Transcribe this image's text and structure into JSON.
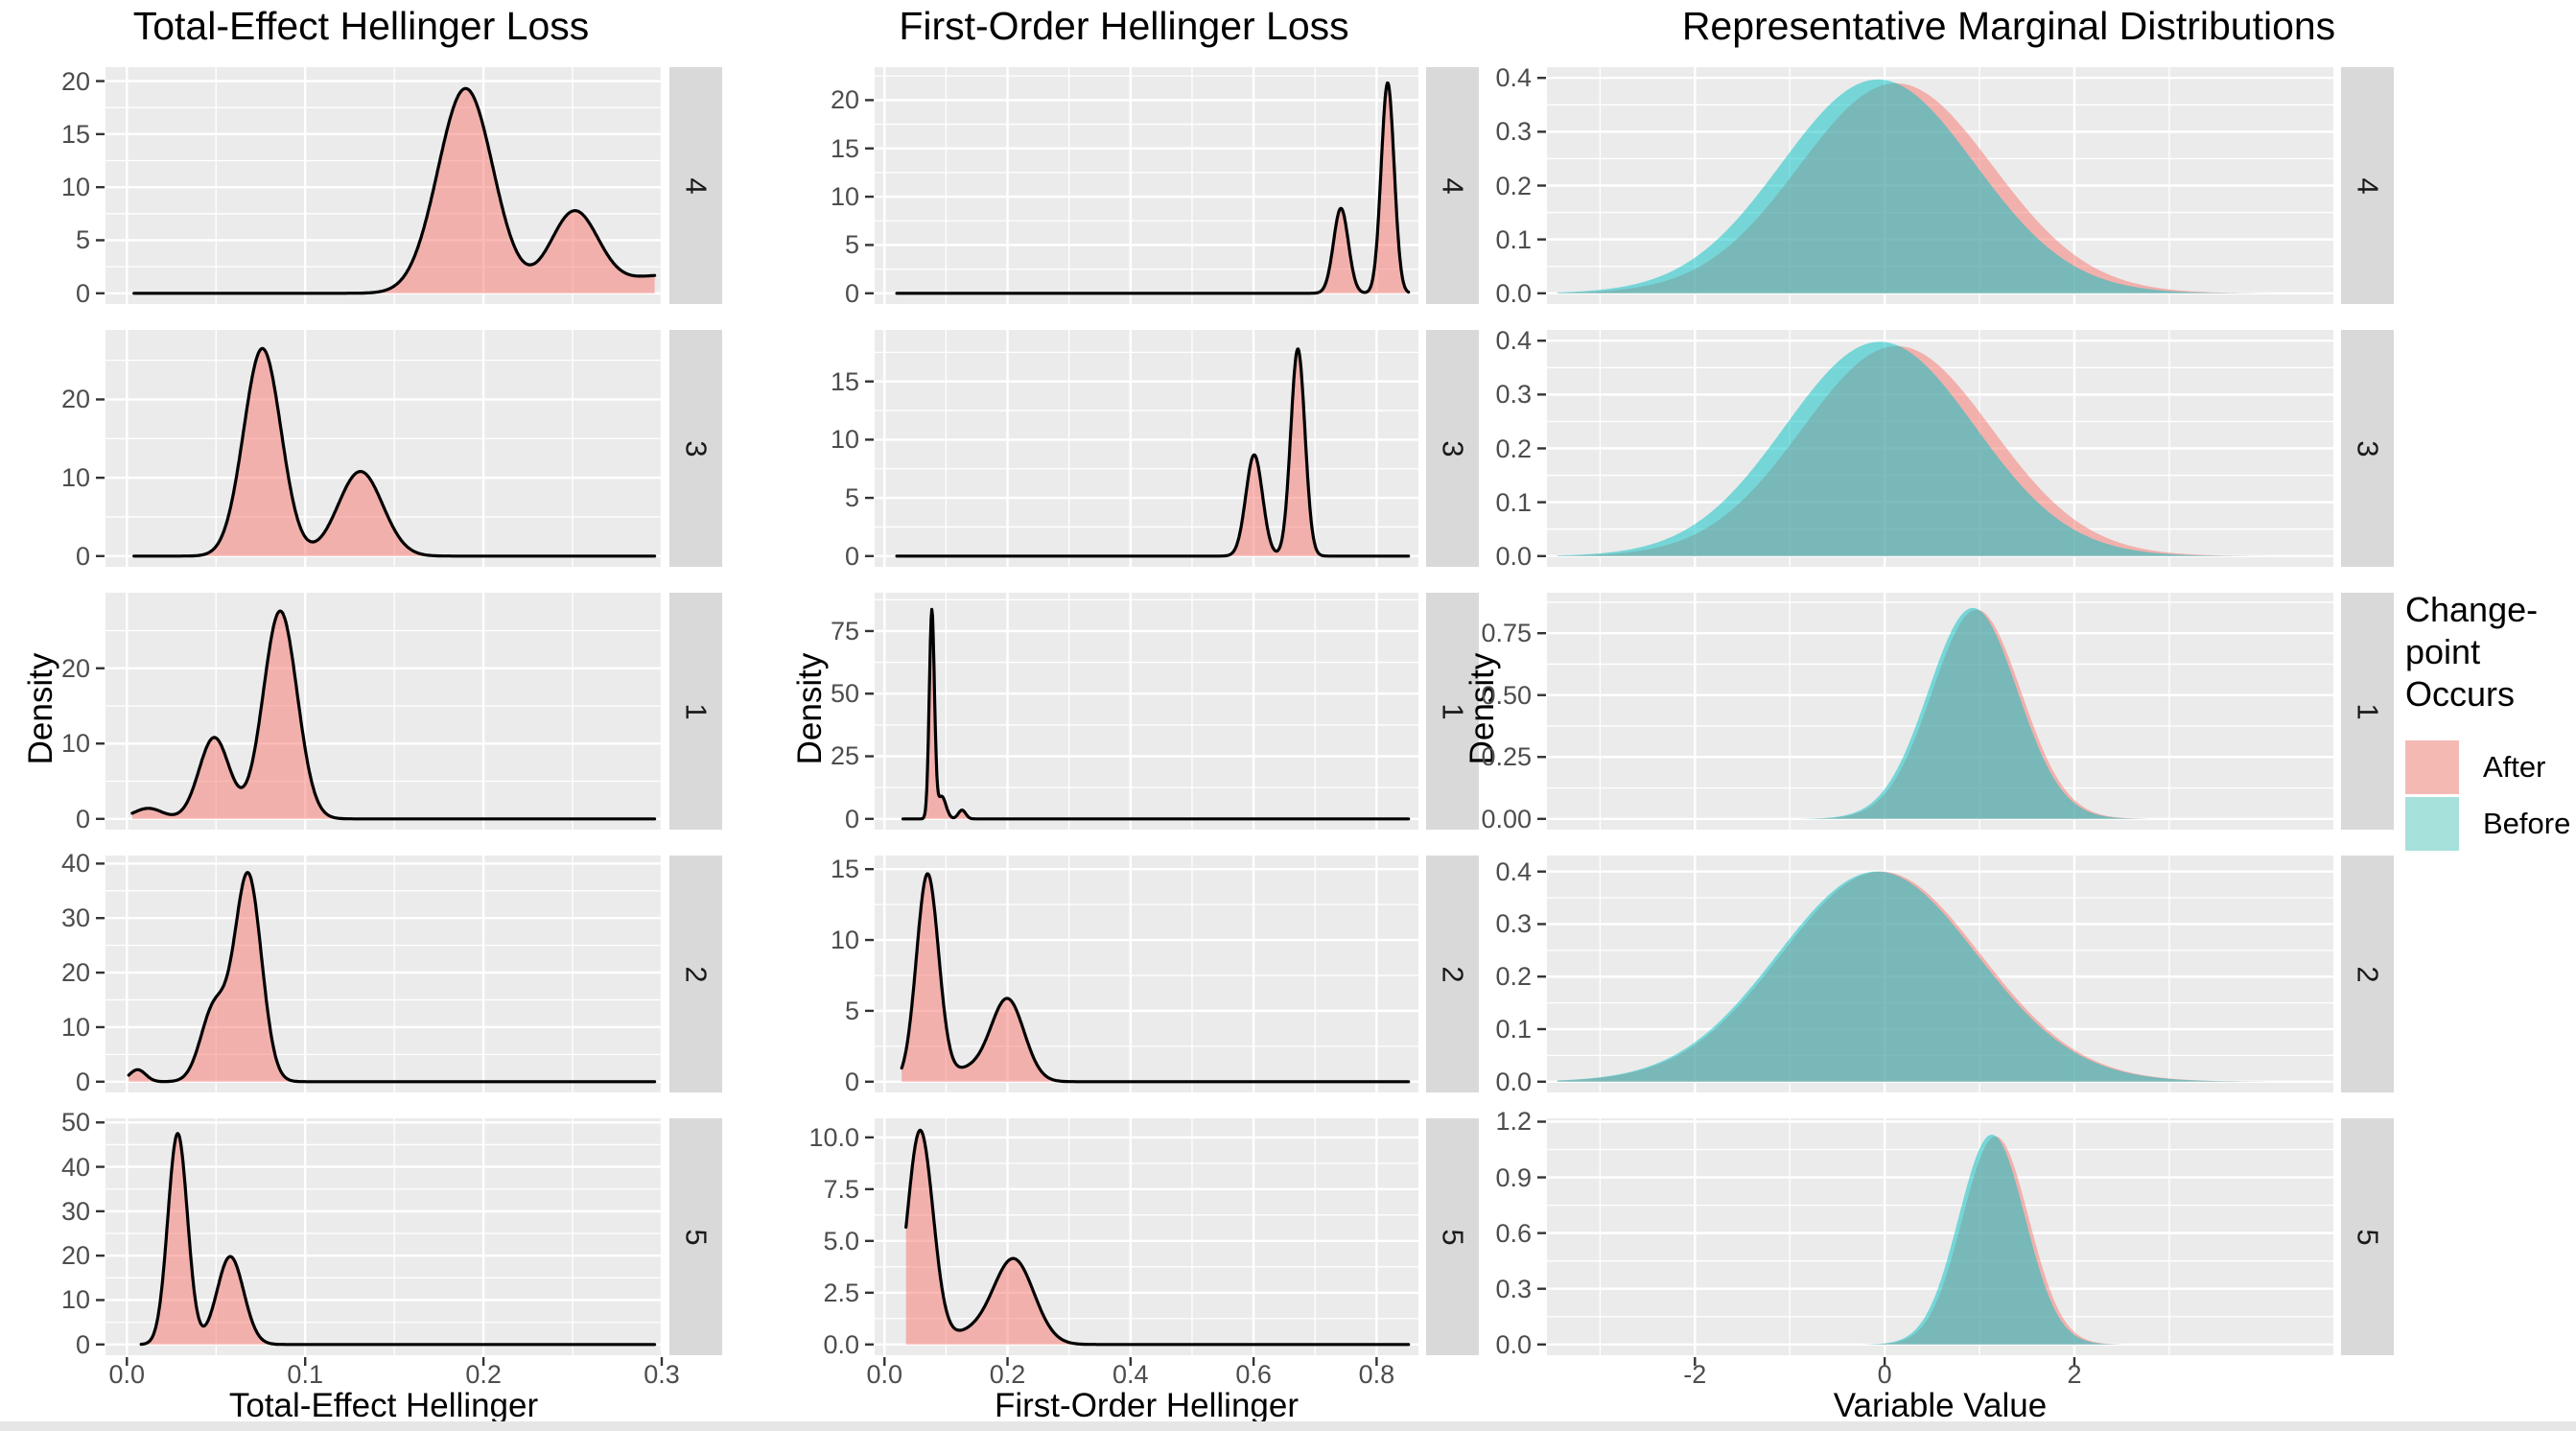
{
  "legend": {
    "title_line1": "Change-point",
    "title_line2": "Occurs",
    "entries": [
      {
        "label": "After",
        "swatch": "#F5B9B4"
      },
      {
        "label": "Before",
        "swatch": "#A7E1DB"
      }
    ]
  },
  "colors": {
    "after_fill": "rgba(248,118,109,0.5)",
    "before_fill": "rgba(0,191,196,0.5)",
    "curve_stroke": "#000000",
    "panel_bg": "#EBEBEB",
    "strip_bg": "#D9D9D9",
    "grid": "#FFFFFF",
    "tick_text": "#4D4D4D",
    "tick_mark": "#333333"
  },
  "chart_data": [
    {
      "type": "area",
      "title": "Total-Effect Hellinger Loss",
      "xlabel": "Total-Effect Hellinger",
      "ylabel": "Density",
      "xlim": [
        -0.012,
        0.3
      ],
      "xticks": [
        0,
        0.1,
        0.2,
        0.3
      ],
      "xtick_labels": [
        "0.0",
        "0.1",
        "0.2",
        "0.3"
      ],
      "x_minor": [
        0.05,
        0.15,
        0.25
      ],
      "outline": true,
      "facets": [
        {
          "label": "4",
          "ymax": 20.3,
          "yticks": [
            0,
            5,
            10,
            15,
            20
          ],
          "ytick_labels": [
            "0",
            "5",
            "10",
            "15",
            "20"
          ],
          "curves": [
            {
              "series": "after",
              "domain": [
                0.004,
                0.296
              ],
              "components": [
                [
                  0.19,
                  0.0155,
                  19.3
                ],
                [
                  0.251,
                  0.0135,
                  7.6
                ],
                [
                  0.302,
                  0.024,
                  1.7
                ]
              ]
            }
          ]
        },
        {
          "label": "3",
          "ymax": 27.5,
          "yticks": [
            0,
            10,
            20
          ],
          "ytick_labels": [
            "0",
            "10",
            "20"
          ],
          "curves": [
            {
              "series": "after",
              "domain": [
                0.004,
                0.296
              ],
              "components": [
                [
                  0.076,
                  0.0105,
                  26.5
                ],
                [
                  0.131,
                  0.0125,
                  10.8
                ]
              ]
            }
          ]
        },
        {
          "label": "1",
          "ymax": 28.6,
          "yticks": [
            0,
            10,
            20
          ],
          "ytick_labels": [
            "0",
            "10",
            "20"
          ],
          "curves": [
            {
              "series": "after",
              "domain": [
                0.003,
                0.296
              ],
              "components": [
                [
                  0.012,
                  0.008,
                  1.4
                ],
                [
                  0.049,
                  0.0085,
                  10.8
                ],
                [
                  0.086,
                  0.0095,
                  27.6
                ]
              ]
            }
          ]
        },
        {
          "label": "2",
          "ymax": 39.5,
          "yticks": [
            0,
            10,
            20,
            30,
            40
          ],
          "ytick_labels": [
            "0",
            "10",
            "20",
            "30",
            "40"
          ],
          "curves": [
            {
              "series": "after",
              "domain": [
                0.001,
                0.296
              ],
              "components": [
                [
                  0.006,
                  0.0045,
                  2.2
                ],
                [
                  0.049,
                  0.0075,
                  13.5
                ],
                [
                  0.068,
                  0.0075,
                  37.8
                ]
              ]
            }
          ]
        },
        {
          "label": "5",
          "ymax": 48.5,
          "yticks": [
            0,
            10,
            20,
            30,
            40,
            50
          ],
          "ytick_labels": [
            "0",
            "10",
            "20",
            "30",
            "40",
            "50"
          ],
          "curves": [
            {
              "series": "after",
              "domain": [
                0.008,
                0.296
              ],
              "components": [
                [
                  0.0285,
                  0.0055,
                  47.5
                ],
                [
                  0.058,
                  0.0075,
                  19.8
                ]
              ]
            }
          ]
        }
      ]
    },
    {
      "type": "area",
      "title": "First-Order Hellinger Loss",
      "xlabel": "First-Order Hellinger",
      "ylabel": "Density",
      "xlim": [
        -0.016,
        0.868
      ],
      "xticks": [
        0,
        0.2,
        0.4,
        0.6,
        0.8
      ],
      "xtick_labels": [
        "0.0",
        "0.2",
        "0.4",
        "0.6",
        "0.8"
      ],
      "x_minor": [
        0.1,
        0.3,
        0.5,
        0.7
      ],
      "outline": true,
      "facets": [
        {
          "label": "4",
          "ymax": 22.3,
          "yticks": [
            0,
            5,
            10,
            15,
            20
          ],
          "ytick_labels": [
            "0",
            "5",
            "10",
            "15",
            "20"
          ],
          "curves": [
            {
              "series": "after",
              "domain": [
                0.02,
                0.852
              ],
              "components": [
                [
                  0.742,
                  0.012,
                  8.8
                ],
                [
                  0.818,
                  0.0105,
                  21.8
                ]
              ]
            }
          ]
        },
        {
          "label": "3",
          "ymax": 18.5,
          "yticks": [
            0,
            5,
            10,
            15
          ],
          "ytick_labels": [
            "0",
            "5",
            "10",
            "15"
          ],
          "curves": [
            {
              "series": "after",
              "domain": [
                0.02,
                0.852
              ],
              "components": [
                [
                  0.601,
                  0.0135,
                  8.7
                ],
                [
                  0.672,
                  0.0115,
                  17.8
                ]
              ]
            }
          ]
        },
        {
          "label": "1",
          "ymax": 86.0,
          "yticks": [
            0,
            25,
            50,
            75
          ],
          "ytick_labels": [
            "0",
            "25",
            "50",
            "75"
          ],
          "curves": [
            {
              "series": "after",
              "domain": [
                0.03,
                0.852
              ],
              "components": [
                [
                  0.077,
                  0.0042,
                  83
                ],
                [
                  0.093,
                  0.007,
                  9
                ],
                [
                  0.126,
                  0.006,
                  3.5
                ]
              ]
            }
          ]
        },
        {
          "label": "2",
          "ymax": 15.2,
          "yticks": [
            0,
            5,
            10,
            15
          ],
          "ytick_labels": [
            "0",
            "5",
            "10",
            "15"
          ],
          "curves": [
            {
              "series": "after",
              "domain": [
                0.028,
                0.852
              ],
              "components": [
                [
                  0.07,
                  0.018,
                  14.6
                ],
                [
                  0.2,
                  0.027,
                  5.8
                ],
                [
                  0.135,
                  0.03,
                  0.8
                ]
              ]
            }
          ]
        },
        {
          "label": "5",
          "ymax": 10.4,
          "yticks": [
            0,
            2.5,
            5,
            7.5,
            10
          ],
          "ytick_labels": [
            "0.0",
            "2.5",
            "5.0",
            "7.5",
            "10.0"
          ],
          "curves": [
            {
              "series": "after",
              "domain": [
                0.035,
                0.852
              ],
              "components": [
                [
                  0.058,
                  0.021,
                  10.3
                ],
                [
                  0.21,
                  0.033,
                  4.1
                ],
                [
                  0.135,
                  0.035,
                  0.5
                ]
              ]
            }
          ]
        }
      ]
    },
    {
      "type": "area",
      "title": "Representative Marginal Distributions",
      "xlabel": "Variable Value",
      "ylabel": "Density",
      "xlim": [
        -3.56,
        4.73
      ],
      "xticks": [
        -2,
        0,
        2
      ],
      "xtick_labels": [
        "-2",
        "0",
        "2"
      ],
      "x_minor": [
        -3,
        -1,
        1,
        3
      ],
      "outline": false,
      "facets": [
        {
          "label": "4",
          "ymax": 0.4,
          "yticks": [
            0,
            0.1,
            0.2,
            0.3,
            0.4
          ],
          "ytick_labels": [
            "0.0",
            "0.1",
            "0.2",
            "0.3",
            "0.4"
          ],
          "curves": [
            {
              "series": "after",
              "domain": [
                -3.45,
                4.1
              ],
              "components": [
                [
                  0.12,
                  1.02,
                  0.39
                ]
              ]
            },
            {
              "series": "before",
              "domain": [
                -3.45,
                4.1
              ],
              "components": [
                [
                  -0.07,
                  1.02,
                  0.397
                ]
              ]
            }
          ]
        },
        {
          "label": "3",
          "ymax": 0.4,
          "yticks": [
            0,
            0.1,
            0.2,
            0.3,
            0.4
          ],
          "ytick_labels": [
            "0.0",
            "0.1",
            "0.2",
            "0.3",
            "0.4"
          ],
          "curves": [
            {
              "series": "after",
              "domain": [
                -3.45,
                4.1
              ],
              "components": [
                [
                  0.13,
                  1.0,
                  0.39
                ]
              ]
            },
            {
              "series": "before",
              "domain": [
                -3.45,
                4.1
              ],
              "components": [
                [
                  -0.05,
                  1.0,
                  0.398
                ]
              ]
            }
          ]
        },
        {
          "label": "1",
          "ymax": 0.87,
          "yticks": [
            0,
            0.25,
            0.5,
            0.75
          ],
          "ytick_labels": [
            "0.00",
            "0.25",
            "0.50",
            "0.75"
          ],
          "curves": [
            {
              "series": "after",
              "domain": [
                -3.45,
                4.1
              ],
              "components": [
                [
                  0.97,
                  0.47,
                  0.845
                ]
              ]
            },
            {
              "series": "before",
              "domain": [
                -3.45,
                4.1
              ],
              "components": [
                [
                  0.93,
                  0.47,
                  0.852
                ]
              ]
            }
          ]
        },
        {
          "label": "2",
          "ymax": 0.41,
          "yticks": [
            0,
            0.1,
            0.2,
            0.3,
            0.4
          ],
          "ytick_labels": [
            "0.0",
            "0.1",
            "0.2",
            "0.3",
            "0.4"
          ],
          "curves": [
            {
              "series": "after",
              "domain": [
                -3.45,
                4.1
              ],
              "components": [
                [
                  -0.04,
                  1.05,
                  0.4
                ]
              ]
            },
            {
              "series": "before",
              "domain": [
                -3.45,
                4.1
              ],
              "components": [
                [
                  -0.08,
                  1.05,
                  0.4
                ]
              ]
            }
          ]
        },
        {
          "label": "5",
          "ymax": 1.16,
          "yticks": [
            0,
            0.3,
            0.6,
            0.9,
            1.2
          ],
          "ytick_labels": [
            "0.0",
            "0.3",
            "0.6",
            "0.9",
            "1.2"
          ],
          "curves": [
            {
              "series": "after",
              "domain": [
                -3.45,
                4.1
              ],
              "components": [
                [
                  1.17,
                  0.35,
                  1.12
                ]
              ]
            },
            {
              "series": "before",
              "domain": [
                -3.45,
                4.1
              ],
              "components": [
                [
                  1.13,
                  0.35,
                  1.13
                ]
              ]
            }
          ]
        }
      ]
    }
  ]
}
